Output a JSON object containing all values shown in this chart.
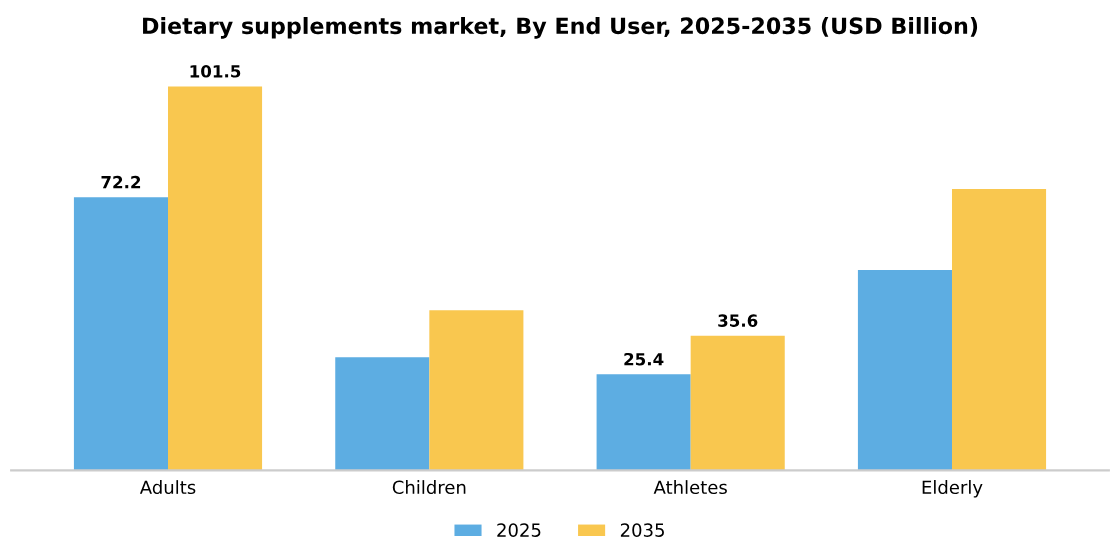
{
  "chart_data": {
    "type": "bar",
    "title": "Dietary supplements market, By End User, 2025-2035 (USD Billion)",
    "categories": [
      "Adults",
      "Children",
      "Athletes",
      "Elderly"
    ],
    "series": [
      {
        "name": "2025",
        "color": "#5dade2",
        "values": [
          72.2,
          29.9,
          25.4,
          53.0
        ],
        "value_labels": [
          "72.2",
          null,
          "25.4",
          null
        ]
      },
      {
        "name": "2035",
        "color": "#f9c74f",
        "values": [
          101.5,
          42.3,
          35.6,
          74.4
        ],
        "value_labels": [
          "101.5",
          null,
          "35.6",
          null
        ]
      }
    ],
    "tick_labels": "x",
    "legend": "bottom"
  }
}
